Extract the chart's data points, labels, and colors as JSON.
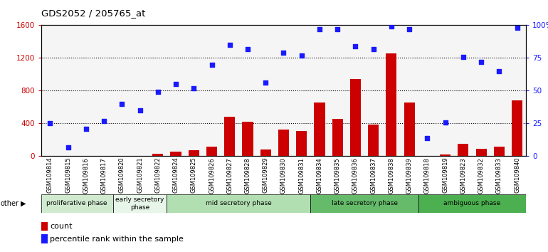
{
  "title": "GDS2052 / 205765_at",
  "samples": [
    "GSM109814",
    "GSM109815",
    "GSM109816",
    "GSM109817",
    "GSM109820",
    "GSM109821",
    "GSM109822",
    "GSM109824",
    "GSM109825",
    "GSM109826",
    "GSM109827",
    "GSM109828",
    "GSM109829",
    "GSM109830",
    "GSM109831",
    "GSM109834",
    "GSM109835",
    "GSM109836",
    "GSM109837",
    "GSM109838",
    "GSM109839",
    "GSM109818",
    "GSM109819",
    "GSM109823",
    "GSM109832",
    "GSM109833",
    "GSM109840"
  ],
  "counts": [
    5,
    5,
    5,
    5,
    5,
    5,
    30,
    55,
    75,
    115,
    480,
    420,
    80,
    330,
    310,
    660,
    460,
    940,
    390,
    1260,
    660,
    5,
    20,
    155,
    95,
    115,
    680
  ],
  "percentiles": [
    25,
    7,
    21,
    27,
    40,
    35,
    49,
    55,
    52,
    70,
    85,
    82,
    56,
    79,
    77,
    97,
    97,
    84,
    82,
    99,
    97,
    14,
    26,
    76,
    72,
    65,
    98
  ],
  "phases": [
    {
      "label": "proliferative phase",
      "start": 0,
      "end": 3,
      "color": "#d0ead0"
    },
    {
      "label": "early secretory\nphase",
      "start": 4,
      "end": 6,
      "color": "#e8f5e9"
    },
    {
      "label": "mid secretory phase",
      "start": 7,
      "end": 14,
      "color": "#b2dfb2"
    },
    {
      "label": "late secretory phase",
      "start": 15,
      "end": 20,
      "color": "#66bb6a"
    },
    {
      "label": "ambiguous phase",
      "start": 21,
      "end": 26,
      "color": "#4caf50"
    }
  ],
  "bar_color": "#cc0000",
  "dot_color": "#1a1aff",
  "ylim_left": [
    0,
    1600
  ],
  "ylim_right": [
    0,
    100
  ],
  "yticks_left": [
    0,
    400,
    800,
    1200,
    1600
  ],
  "yticks_right": [
    0,
    25,
    50,
    75,
    100
  ],
  "ytick_labels_right": [
    "0",
    "25",
    "50",
    "75",
    "100%"
  ],
  "plot_bg_color": "#f5f5f5"
}
